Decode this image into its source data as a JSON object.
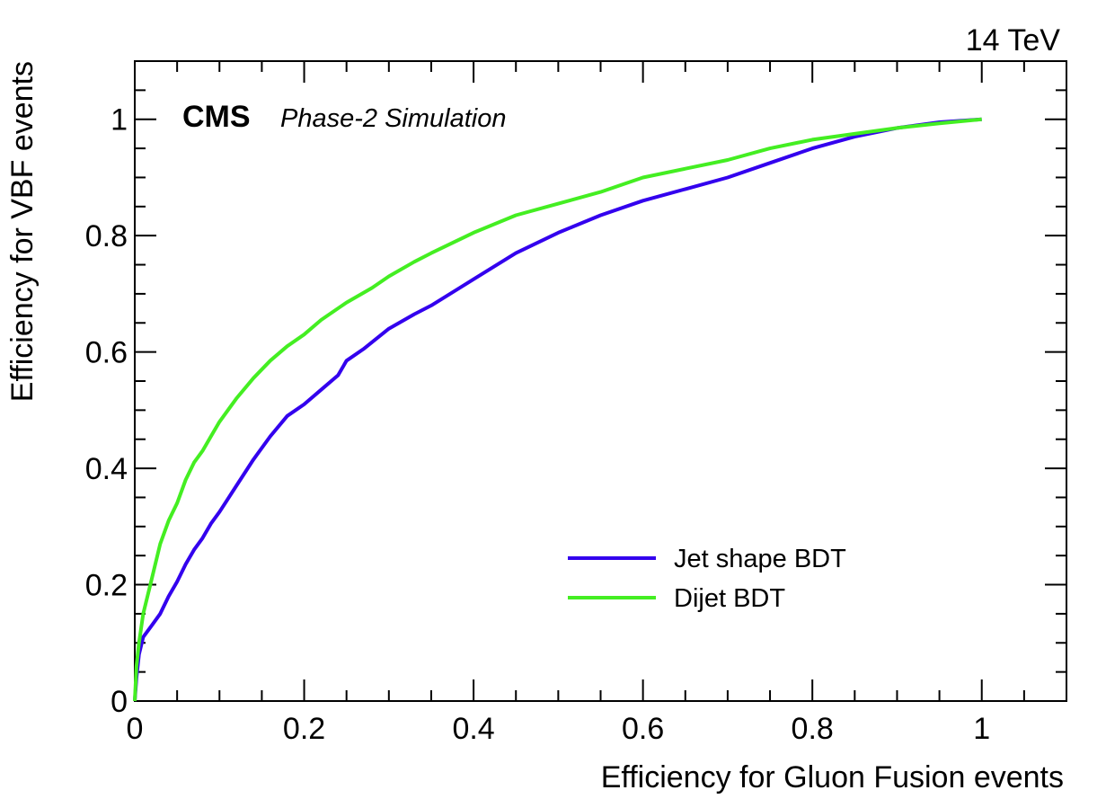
{
  "chart_data": {
    "type": "line",
    "xlabel": "Efficiency for Gluon Fusion events",
    "ylabel": "Efficiency for VBF events",
    "energy_label": "14 TeV",
    "experiment_label": "CMS",
    "experiment_sublabel": "Phase-2 Simulation",
    "xlim": [
      0,
      1.1
    ],
    "ylim": [
      0,
      1.1
    ],
    "x_ticks": [
      0,
      0.2,
      0.4,
      0.6,
      0.8,
      1
    ],
    "x_tick_labels": [
      "0",
      "0.2",
      "0.4",
      "0.6",
      "0.8",
      "1"
    ],
    "y_ticks": [
      0,
      0.2,
      0.4,
      0.6,
      0.8,
      1
    ],
    "y_tick_labels": [
      "0",
      "0.2",
      "0.4",
      "0.6",
      "0.8",
      "1"
    ],
    "grid": false,
    "legend_position": "bottom-right",
    "series": [
      {
        "name": "Jet shape BDT",
        "color": "#3300ee",
        "x": [
          0,
          0.002,
          0.005,
          0.01,
          0.02,
          0.03,
          0.04,
          0.05,
          0.06,
          0.07,
          0.08,
          0.09,
          0.1,
          0.12,
          0.14,
          0.16,
          0.18,
          0.2,
          0.22,
          0.24,
          0.25,
          0.27,
          0.3,
          0.33,
          0.35,
          0.4,
          0.45,
          0.5,
          0.55,
          0.6,
          0.65,
          0.7,
          0.75,
          0.8,
          0.85,
          0.9,
          0.95,
          1.0
        ],
        "y": [
          0,
          0.04,
          0.08,
          0.11,
          0.13,
          0.15,
          0.18,
          0.205,
          0.235,
          0.26,
          0.28,
          0.305,
          0.325,
          0.37,
          0.415,
          0.455,
          0.49,
          0.51,
          0.535,
          0.56,
          0.585,
          0.605,
          0.64,
          0.665,
          0.68,
          0.725,
          0.77,
          0.805,
          0.835,
          0.86,
          0.88,
          0.9,
          0.925,
          0.95,
          0.97,
          0.985,
          0.995,
          1.0
        ]
      },
      {
        "name": "Dijet BDT",
        "color": "#44ee22",
        "x": [
          0,
          0.002,
          0.005,
          0.01,
          0.02,
          0.03,
          0.04,
          0.05,
          0.06,
          0.07,
          0.08,
          0.09,
          0.1,
          0.12,
          0.14,
          0.16,
          0.18,
          0.2,
          0.22,
          0.25,
          0.28,
          0.3,
          0.33,
          0.35,
          0.4,
          0.45,
          0.5,
          0.55,
          0.6,
          0.65,
          0.7,
          0.75,
          0.8,
          0.85,
          0.9,
          0.95,
          1.0
        ],
        "y": [
          0,
          0.06,
          0.1,
          0.15,
          0.21,
          0.27,
          0.31,
          0.34,
          0.38,
          0.41,
          0.43,
          0.455,
          0.48,
          0.52,
          0.555,
          0.585,
          0.61,
          0.63,
          0.655,
          0.685,
          0.71,
          0.73,
          0.755,
          0.77,
          0.805,
          0.835,
          0.855,
          0.875,
          0.9,
          0.915,
          0.93,
          0.95,
          0.965,
          0.975,
          0.985,
          0.993,
          1.0
        ]
      }
    ]
  }
}
